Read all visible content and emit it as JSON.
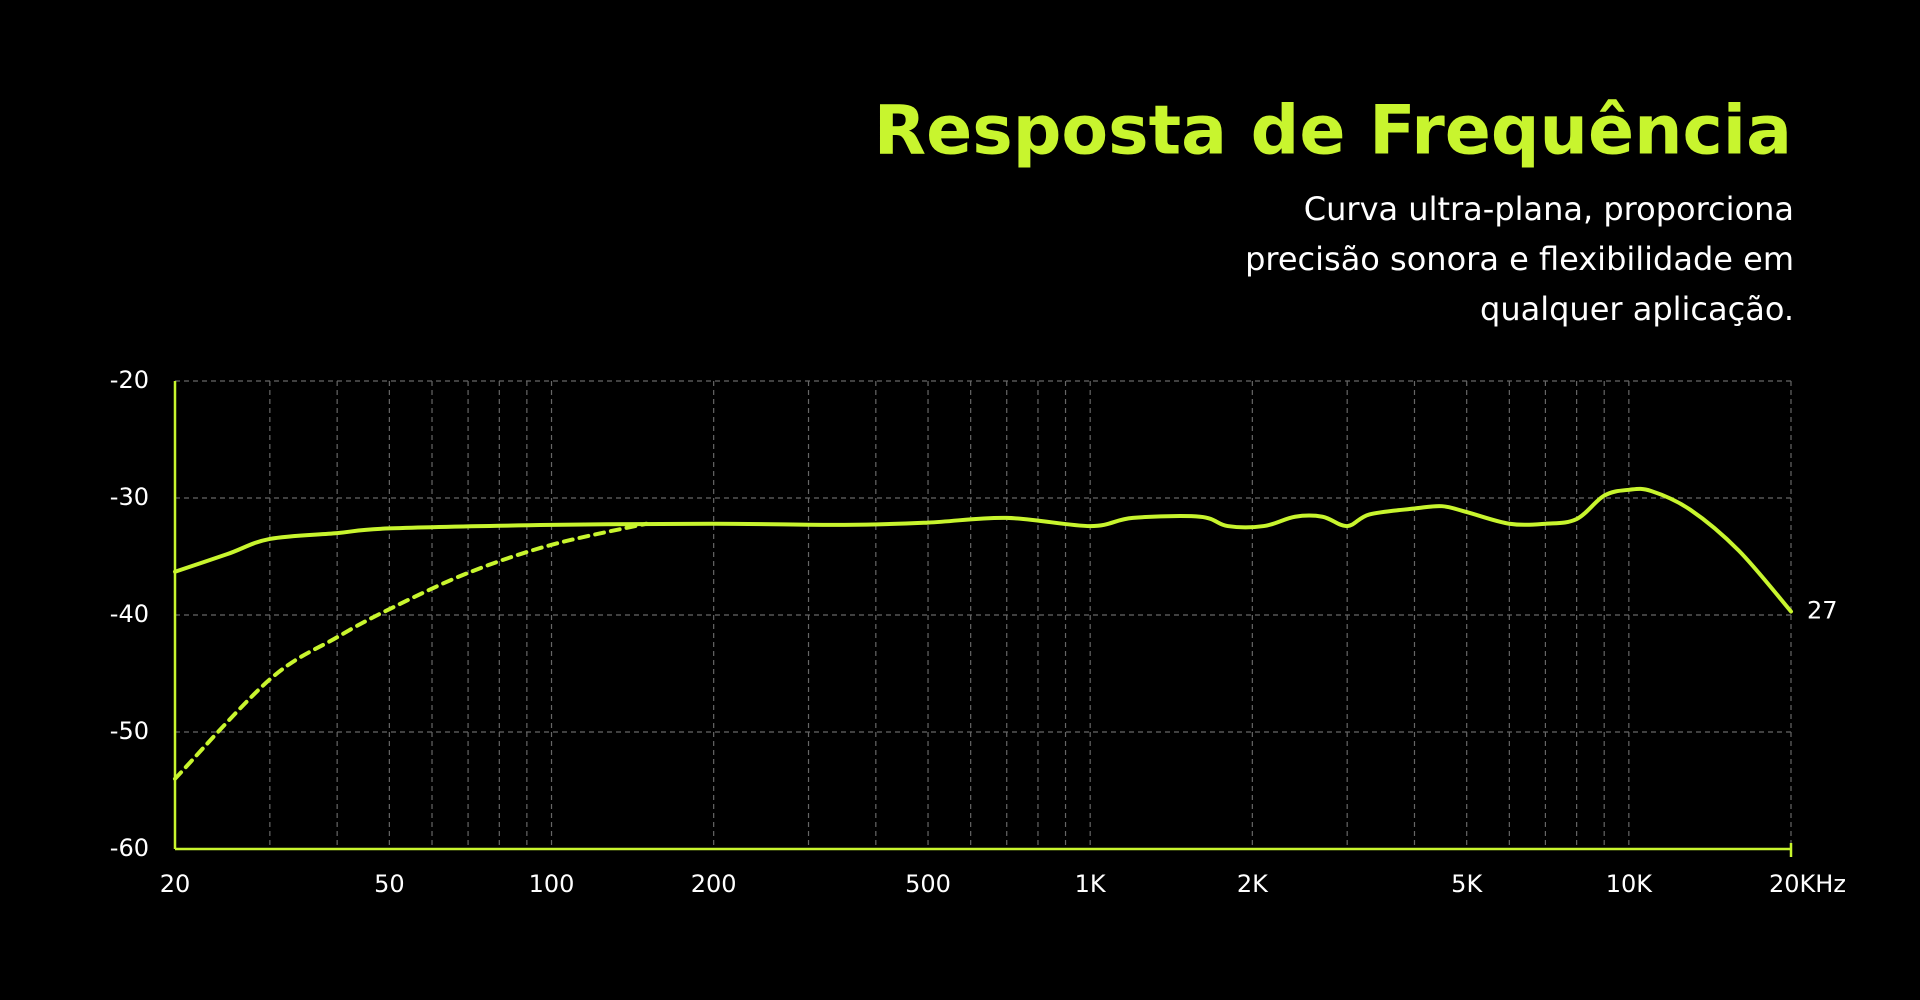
{
  "chart_data": {
    "type": "line",
    "title": "Resposta de Frequência",
    "subtitle": [
      "Curva ultra-plana, proporciona",
      "precisão sonora e flexibilidade em",
      "qualquer aplicação."
    ],
    "xlog": true,
    "xlim": [
      20,
      20000
    ],
    "xticks": [
      20,
      50,
      100,
      200,
      500,
      {
        "value": 1000,
        "label": "1K"
      },
      {
        "value": 2000,
        "label": "2K"
      },
      {
        "value": 5000,
        "label": "5K"
      },
      {
        "value": 10000,
        "label": "10K"
      },
      {
        "value": 20000,
        "label": "20KHz"
      }
    ],
    "xminor": [
      30,
      40,
      60,
      70,
      80,
      90,
      300,
      400,
      600,
      700,
      800,
      900,
      3000,
      4000,
      6000,
      7000,
      8000,
      9000
    ],
    "ylim": [
      -60,
      -20
    ],
    "yticks": [
      -20,
      -30,
      -40,
      -50,
      -60
    ],
    "grid": true,
    "color": "#c8f52e",
    "end_label": "27",
    "series": [
      {
        "color": "#c8f52e",
        "dashed": false,
        "x": [
          20,
          25,
          30,
          40,
          50,
          100,
          200,
          350,
          500,
          700,
          1000,
          1200,
          1600,
          1800,
          2100,
          2400,
          2700,
          3000,
          3300,
          4000,
          4500,
          5000,
          6000,
          7000,
          8000,
          9000,
          10000,
          11000,
          13000,
          16000,
          20000
        ],
        "values": [
          -36.3,
          -34.8,
          -33.5,
          -33.0,
          -32.6,
          -32.3,
          -32.2,
          -32.3,
          -32.1,
          -31.7,
          -32.4,
          -31.7,
          -31.6,
          -32.4,
          -32.4,
          -31.6,
          -31.6,
          -32.4,
          -31.4,
          -30.9,
          -30.7,
          -31.2,
          -32.2,
          -32.2,
          -31.8,
          -29.8,
          -29.3,
          -29.4,
          -31.0,
          -34.5,
          -39.7
        ]
      },
      {
        "color": "#c8f52e",
        "dashed": true,
        "x": [
          20,
          30,
          40,
          50,
          70,
          100,
          150
        ],
        "values": [
          -54.0,
          -45.5,
          -41.9,
          -39.5,
          -36.4,
          -34.0,
          -32.2
        ]
      }
    ]
  }
}
